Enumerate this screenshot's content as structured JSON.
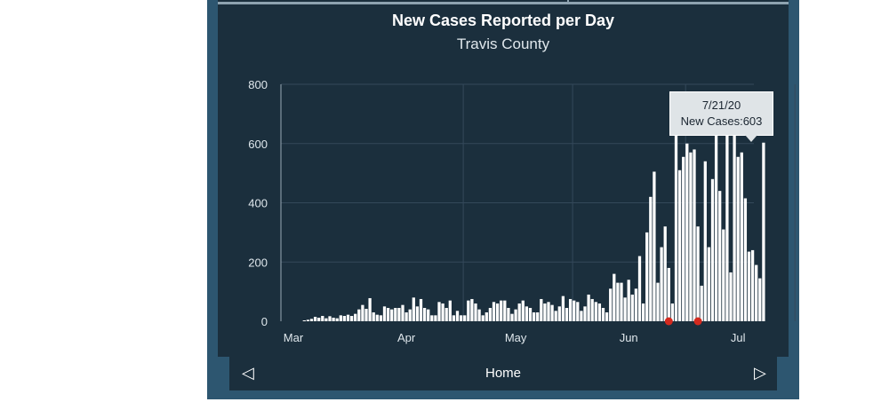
{
  "navigation": {
    "label": "Home"
  },
  "tooltip": {
    "date": "7/21/20",
    "text": "New Cases:603"
  },
  "colors": {
    "bar": "#ffffff",
    "marker": "#d42a1f",
    "grid": "#34495a",
    "panel": "#1b2f3d"
  },
  "chart_data": {
    "type": "bar",
    "title": "New Cases Reported per Day",
    "subtitle": "Travis County",
    "xlabel": "",
    "ylabel": "",
    "ylim": [
      0,
      800
    ],
    "yticks": [
      0,
      200,
      400,
      600,
      800
    ],
    "xtick_labels": [
      {
        "label": "Mar",
        "day": 0
      },
      {
        "label": "Apr",
        "day": 31
      },
      {
        "label": "May",
        "day": 61
      },
      {
        "label": "Jun",
        "day": 92
      },
      {
        "label": "Jul",
        "day": 122
      }
    ],
    "x_start": "3/1/20",
    "day_offset": 3,
    "values": [
      3,
      5,
      8,
      15,
      12,
      18,
      10,
      17,
      12,
      10,
      20,
      18,
      22,
      18,
      25,
      40,
      55,
      42,
      78,
      30,
      22,
      20,
      50,
      45,
      40,
      45,
      45,
      55,
      30,
      40,
      80,
      50,
      75,
      45,
      40,
      20,
      20,
      65,
      60,
      45,
      70,
      20,
      35,
      20,
      20,
      70,
      75,
      60,
      40,
      20,
      30,
      45,
      65,
      60,
      70,
      70,
      45,
      25,
      40,
      60,
      70,
      50,
      45,
      30,
      30,
      75,
      60,
      65,
      55,
      35,
      50,
      85,
      45,
      75,
      70,
      65,
      35,
      50,
      90,
      75,
      65,
      60,
      45,
      30,
      110,
      160,
      130,
      130,
      80,
      140,
      90,
      110,
      220,
      60,
      300,
      420,
      505,
      130,
      250,
      320,
      180,
      60,
      730,
      510,
      555,
      600,
      570,
      580,
      320,
      120,
      540,
      250,
      480,
      680,
      440,
      310,
      650,
      165,
      670,
      555,
      570,
      415,
      235,
      240,
      190,
      145,
      603
    ],
    "markers": [
      {
        "label": "marker-1",
        "day": 103
      },
      {
        "label": "marker-2",
        "day": 111
      }
    ]
  }
}
